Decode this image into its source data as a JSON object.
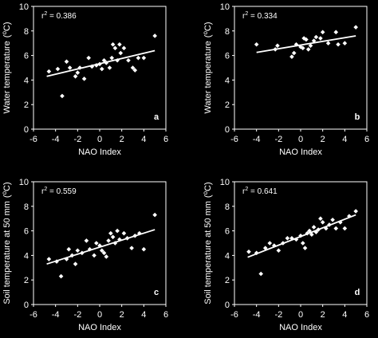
{
  "chart_data": [
    {
      "type": "scatter",
      "panel_letter": "a",
      "r2_label": "r",
      "r2_sup": "2",
      "r2_value": " = 0.386",
      "xlabel": "NAO Index",
      "ylabel": "Water temperature",
      "ylabel_unit_open": "(",
      "ylabel_unit_deg": "o",
      "ylabel_unit_close": "C)",
      "xlim": [
        -6,
        6
      ],
      "ylim": [
        0,
        10
      ],
      "xticks": [
        "-6",
        "-4",
        "-2",
        "0",
        "2",
        "4",
        "6"
      ],
      "yticks": [
        "0",
        "2",
        "4",
        "6",
        "8",
        "10"
      ],
      "trend": {
        "x": [
          -4.8,
          5.0
        ],
        "y": [
          4.3,
          6.4
        ]
      },
      "points": [
        {
          "x": -4.6,
          "y": 4.7
        },
        {
          "x": -3.8,
          "y": 4.9
        },
        {
          "x": -3.4,
          "y": 2.7
        },
        {
          "x": -3.0,
          "y": 5.5
        },
        {
          "x": -2.7,
          "y": 5.0
        },
        {
          "x": -2.2,
          "y": 4.3
        },
        {
          "x": -2.0,
          "y": 4.6
        },
        {
          "x": -1.8,
          "y": 5.0
        },
        {
          "x": -1.4,
          "y": 4.1
        },
        {
          "x": -1.0,
          "y": 5.8
        },
        {
          "x": -0.7,
          "y": 5.1
        },
        {
          "x": -0.3,
          "y": 5.2
        },
        {
          "x": 0.0,
          "y": 5.3
        },
        {
          "x": 0.2,
          "y": 4.9
        },
        {
          "x": 0.4,
          "y": 5.6
        },
        {
          "x": 0.6,
          "y": 5.4
        },
        {
          "x": 0.9,
          "y": 5.0
        },
        {
          "x": 1.1,
          "y": 5.8
        },
        {
          "x": 1.2,
          "y": 6.9
        },
        {
          "x": 1.4,
          "y": 6.6
        },
        {
          "x": 1.6,
          "y": 5.6
        },
        {
          "x": 1.8,
          "y": 6.9
        },
        {
          "x": 1.9,
          "y": 6.2
        },
        {
          "x": 2.2,
          "y": 6.6
        },
        {
          "x": 2.6,
          "y": 5.6
        },
        {
          "x": 3.0,
          "y": 5.0
        },
        {
          "x": 3.2,
          "y": 4.8
        },
        {
          "x": 3.5,
          "y": 5.8
        },
        {
          "x": 4.0,
          "y": 5.8
        },
        {
          "x": 5.0,
          "y": 7.6
        }
      ]
    },
    {
      "type": "scatter",
      "panel_letter": "b",
      "r2_label": "r",
      "r2_sup": "2",
      "r2_value": " = 0.334",
      "xlabel": "NAO Index",
      "ylabel": "Water temperature",
      "ylabel_unit_open": "(",
      "ylabel_unit_deg": "o",
      "ylabel_unit_close": "C)",
      "xlim": [
        -6,
        6
      ],
      "ylim": [
        0,
        10
      ],
      "xticks": [
        "-6",
        "-4",
        "-2",
        "0",
        "2",
        "4",
        "6"
      ],
      "yticks": [
        "0",
        "2",
        "4",
        "6",
        "8",
        "10"
      ],
      "trend": {
        "x": [
          -4.0,
          5.0
        ],
        "y": [
          6.25,
          7.6
        ]
      },
      "points": [
        {
          "x": -4.0,
          "y": 6.9
        },
        {
          "x": -2.3,
          "y": 6.5
        },
        {
          "x": -2.1,
          "y": 6.8
        },
        {
          "x": -0.8,
          "y": 5.9
        },
        {
          "x": -0.6,
          "y": 6.2
        },
        {
          "x": -0.4,
          "y": 6.9
        },
        {
          "x": 0.0,
          "y": 6.7
        },
        {
          "x": 0.2,
          "y": 6.6
        },
        {
          "x": 0.3,
          "y": 7.4
        },
        {
          "x": 0.5,
          "y": 7.3
        },
        {
          "x": 0.7,
          "y": 6.5
        },
        {
          "x": 0.9,
          "y": 6.8
        },
        {
          "x": 1.2,
          "y": 7.2
        },
        {
          "x": 1.4,
          "y": 7.5
        },
        {
          "x": 1.8,
          "y": 7.4
        },
        {
          "x": 2.0,
          "y": 7.9
        },
        {
          "x": 2.5,
          "y": 7.0
        },
        {
          "x": 3.2,
          "y": 7.9
        },
        {
          "x": 3.4,
          "y": 6.9
        },
        {
          "x": 4.0,
          "y": 7.0
        },
        {
          "x": 5.0,
          "y": 8.3
        }
      ]
    },
    {
      "type": "scatter",
      "panel_letter": "c",
      "r2_label": "r",
      "r2_sup": "2",
      "r2_value": " = 0.559",
      "xlabel": "NAO Index",
      "ylabel": "Soil temperature at 50 mm",
      "ylabel_unit_open": "(",
      "ylabel_unit_deg": "o",
      "ylabel_unit_close": "C)",
      "xlim": [
        -6,
        6
      ],
      "ylim": [
        0,
        10
      ],
      "xticks": [
        "-6",
        "-4",
        "-2",
        "0",
        "2",
        "4",
        "6"
      ],
      "yticks": [
        "0",
        "2",
        "4",
        "6",
        "8",
        "10"
      ],
      "trend": {
        "x": [
          -4.8,
          5.0
        ],
        "y": [
          3.3,
          6.1
        ]
      },
      "points": [
        {
          "x": -4.6,
          "y": 3.7
        },
        {
          "x": -3.9,
          "y": 3.5
        },
        {
          "x": -3.5,
          "y": 2.3
        },
        {
          "x": -3.0,
          "y": 3.7
        },
        {
          "x": -2.8,
          "y": 4.5
        },
        {
          "x": -2.5,
          "y": 4.0
        },
        {
          "x": -2.2,
          "y": 3.3
        },
        {
          "x": -2.0,
          "y": 4.4
        },
        {
          "x": -1.6,
          "y": 4.2
        },
        {
          "x": -1.2,
          "y": 5.2
        },
        {
          "x": -0.9,
          "y": 4.5
        },
        {
          "x": -0.5,
          "y": 4.0
        },
        {
          "x": -0.3,
          "y": 5.0
        },
        {
          "x": 0.0,
          "y": 4.8
        },
        {
          "x": 0.2,
          "y": 4.4
        },
        {
          "x": 0.4,
          "y": 4.2
        },
        {
          "x": 0.6,
          "y": 3.9
        },
        {
          "x": 0.8,
          "y": 5.2
        },
        {
          "x": 1.0,
          "y": 5.8
        },
        {
          "x": 1.2,
          "y": 5.5
        },
        {
          "x": 1.4,
          "y": 5.0
        },
        {
          "x": 1.6,
          "y": 6.0
        },
        {
          "x": 1.8,
          "y": 5.3
        },
        {
          "x": 2.2,
          "y": 5.8
        },
        {
          "x": 2.5,
          "y": 5.4
        },
        {
          "x": 2.9,
          "y": 4.6
        },
        {
          "x": 3.2,
          "y": 5.6
        },
        {
          "x": 3.6,
          "y": 5.8
        },
        {
          "x": 4.0,
          "y": 4.5
        },
        {
          "x": 5.0,
          "y": 7.3
        }
      ]
    },
    {
      "type": "scatter",
      "panel_letter": "d",
      "r2_label": "r",
      "r2_sup": "2",
      "r2_value": " = 0.641",
      "xlabel": "NAO Index",
      "ylabel": "Soil temperature at 50 mm",
      "ylabel_unit_open": "(",
      "ylabel_unit_deg": "o",
      "ylabel_unit_close": "C)",
      "xlim": [
        -6,
        6
      ],
      "ylim": [
        0,
        10
      ],
      "xticks": [
        "-6",
        "-4",
        "-2",
        "0",
        "2",
        "4",
        "6"
      ],
      "yticks": [
        "0",
        "2",
        "4",
        "6",
        "8",
        "10"
      ],
      "trend": {
        "x": [
          -4.8,
          5.0
        ],
        "y": [
          3.85,
          7.3
        ]
      },
      "points": [
        {
          "x": -4.7,
          "y": 4.3
        },
        {
          "x": -4.0,
          "y": 4.2
        },
        {
          "x": -3.6,
          "y": 2.5
        },
        {
          "x": -3.2,
          "y": 4.6
        },
        {
          "x": -2.8,
          "y": 5.0
        },
        {
          "x": -2.4,
          "y": 4.8
        },
        {
          "x": -2.0,
          "y": 4.4
        },
        {
          "x": -1.6,
          "y": 5.0
        },
        {
          "x": -1.2,
          "y": 5.4
        },
        {
          "x": -0.8,
          "y": 5.4
        },
        {
          "x": -0.4,
          "y": 5.3
        },
        {
          "x": 0.0,
          "y": 5.6
        },
        {
          "x": 0.2,
          "y": 5.0
        },
        {
          "x": 0.4,
          "y": 4.6
        },
        {
          "x": 0.6,
          "y": 5.8
        },
        {
          "x": 0.8,
          "y": 6.0
        },
        {
          "x": 1.0,
          "y": 5.7
        },
        {
          "x": 1.2,
          "y": 6.3
        },
        {
          "x": 1.4,
          "y": 5.9
        },
        {
          "x": 1.6,
          "y": 6.1
        },
        {
          "x": 1.8,
          "y": 7.0
        },
        {
          "x": 2.0,
          "y": 6.7
        },
        {
          "x": 2.3,
          "y": 6.2
        },
        {
          "x": 2.6,
          "y": 6.5
        },
        {
          "x": 2.9,
          "y": 6.9
        },
        {
          "x": 3.2,
          "y": 6.2
        },
        {
          "x": 3.6,
          "y": 6.7
        },
        {
          "x": 4.0,
          "y": 6.2
        },
        {
          "x": 4.4,
          "y": 7.2
        },
        {
          "x": 5.0,
          "y": 7.6
        }
      ]
    }
  ]
}
